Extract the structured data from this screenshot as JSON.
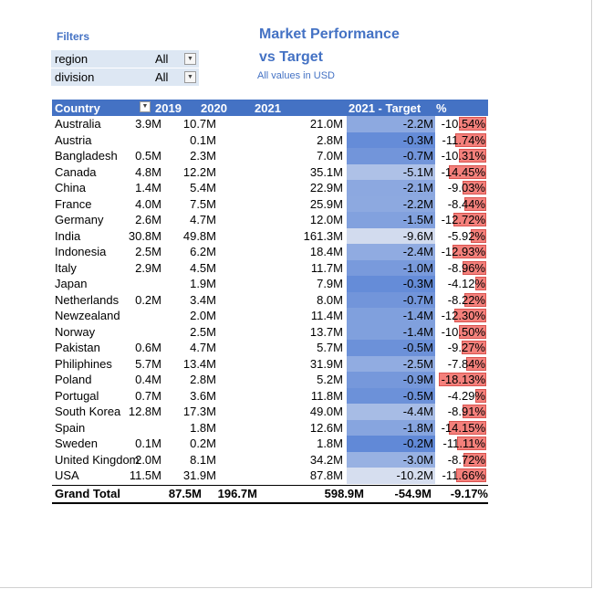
{
  "filters": {
    "title": "Filters",
    "items": [
      {
        "name": "region",
        "value": "All"
      },
      {
        "name": "division",
        "value": "All"
      }
    ]
  },
  "title_line1": "Market Performance",
  "title_line2": "vs Target",
  "subtitle": "All values in USD",
  "headers": {
    "country": "Country",
    "y2019": "2019",
    "y2020": "2020",
    "y2021": "2021",
    "target": "2021 - Target",
    "pct": "%"
  },
  "rows": [
    {
      "country": "Australia",
      "y2019": "3.9M",
      "y2020": "10.7M",
      "y2021": "21.0M",
      "target": "-2.2M",
      "pct": "-10.54%",
      "pct_value": 10.54,
      "target_value": 2.2
    },
    {
      "country": "Austria",
      "y2019": "",
      "y2020": "0.1M",
      "y2021": "2.8M",
      "target": "-0.3M",
      "pct": "-11.74%",
      "pct_value": 11.74,
      "target_value": 0.3
    },
    {
      "country": "Bangladesh",
      "y2019": "0.5M",
      "y2020": "2.3M",
      "y2021": "7.0M",
      "target": "-0.7M",
      "pct": "-10.31%",
      "pct_value": 10.31,
      "target_value": 0.7
    },
    {
      "country": "Canada",
      "y2019": "4.8M",
      "y2020": "12.2M",
      "y2021": "35.1M",
      "target": "-5.1M",
      "pct": "-14.45%",
      "pct_value": 14.45,
      "target_value": 5.1
    },
    {
      "country": "China",
      "y2019": "1.4M",
      "y2020": "5.4M",
      "y2021": "22.9M",
      "target": "-2.1M",
      "pct": "-9.03%",
      "pct_value": 9.03,
      "target_value": 2.1
    },
    {
      "country": "France",
      "y2019": "4.0M",
      "y2020": "7.5M",
      "y2021": "25.9M",
      "target": "-2.2M",
      "pct": "-8.44%",
      "pct_value": 8.44,
      "target_value": 2.2
    },
    {
      "country": "Germany",
      "y2019": "2.6M",
      "y2020": "4.7M",
      "y2021": "12.0M",
      "target": "-1.5M",
      "pct": "-12.72%",
      "pct_value": 12.72,
      "target_value": 1.5
    },
    {
      "country": "India",
      "y2019": "30.8M",
      "y2020": "49.8M",
      "y2021": "161.3M",
      "target": "-9.6M",
      "pct": "-5.92%",
      "pct_value": 5.92,
      "target_value": 9.6
    },
    {
      "country": "Indonesia",
      "y2019": "2.5M",
      "y2020": "6.2M",
      "y2021": "18.4M",
      "target": "-2.4M",
      "pct": "-12.93%",
      "pct_value": 12.93,
      "target_value": 2.4
    },
    {
      "country": "Italy",
      "y2019": "2.9M",
      "y2020": "4.5M",
      "y2021": "11.7M",
      "target": "-1.0M",
      "pct": "-8.96%",
      "pct_value": 8.96,
      "target_value": 1.0
    },
    {
      "country": "Japan",
      "y2019": "",
      "y2020": "1.9M",
      "y2021": "7.9M",
      "target": "-0.3M",
      "pct": "-4.12%",
      "pct_value": 4.12,
      "target_value": 0.3
    },
    {
      "country": "Netherlands",
      "y2019": "0.2M",
      "y2020": "3.4M",
      "y2021": "8.0M",
      "target": "-0.7M",
      "pct": "-8.22%",
      "pct_value": 8.22,
      "target_value": 0.7
    },
    {
      "country": "Newzealand",
      "y2019": "",
      "y2020": "2.0M",
      "y2021": "11.4M",
      "target": "-1.4M",
      "pct": "-12.30%",
      "pct_value": 12.3,
      "target_value": 1.4
    },
    {
      "country": "Norway",
      "y2019": "",
      "y2020": "2.5M",
      "y2021": "13.7M",
      "target": "-1.4M",
      "pct": "-10.50%",
      "pct_value": 10.5,
      "target_value": 1.4
    },
    {
      "country": "Pakistan",
      "y2019": "0.6M",
      "y2020": "4.7M",
      "y2021": "5.7M",
      "target": "-0.5M",
      "pct": "-9.27%",
      "pct_value": 9.27,
      "target_value": 0.5
    },
    {
      "country": "Philiphines",
      "y2019": "5.7M",
      "y2020": "13.4M",
      "y2021": "31.9M",
      "target": "-2.5M",
      "pct": "-7.84%",
      "pct_value": 7.84,
      "target_value": 2.5
    },
    {
      "country": "Poland",
      "y2019": "0.4M",
      "y2020": "2.8M",
      "y2021": "5.2M",
      "target": "-0.9M",
      "pct": "-18.13%",
      "pct_value": 18.13,
      "target_value": 0.9
    },
    {
      "country": "Portugal",
      "y2019": "0.7M",
      "y2020": "3.6M",
      "y2021": "11.8M",
      "target": "-0.5M",
      "pct": "-4.29%",
      "pct_value": 4.29,
      "target_value": 0.5
    },
    {
      "country": "South Korea",
      "y2019": "12.8M",
      "y2020": "17.3M",
      "y2021": "49.0M",
      "target": "-4.4M",
      "pct": "-8.91%",
      "pct_value": 8.91,
      "target_value": 4.4
    },
    {
      "country": "Spain",
      "y2019": "",
      "y2020": "1.8M",
      "y2021": "12.6M",
      "target": "-1.8M",
      "pct": "-14.15%",
      "pct_value": 14.15,
      "target_value": 1.8
    },
    {
      "country": "Sweden",
      "y2019": "0.1M",
      "y2020": "0.2M",
      "y2021": "1.8M",
      "target": "-0.2M",
      "pct": "-11.11%",
      "pct_value": 11.11,
      "target_value": 0.2
    },
    {
      "country": "United Kingdom",
      "y2019": "2.0M",
      "y2020": "8.1M",
      "y2021": "34.2M",
      "target": "-3.0M",
      "pct": "-8.72%",
      "pct_value": 8.72,
      "target_value": 3.0
    },
    {
      "country": "USA",
      "y2019": "11.5M",
      "y2020": "31.9M",
      "y2021": "87.8M",
      "target": "-10.2M",
      "pct": "-11.66%",
      "pct_value": 11.66,
      "target_value": 10.2
    }
  ],
  "total": {
    "label": "Grand Total",
    "y2019": "87.5M",
    "y2020": "196.7M",
    "y2021": "598.9M",
    "target": "-54.9M",
    "pct": "-9.17%"
  },
  "colors": {
    "header": "#4472c4",
    "title": "#4472c4",
    "filter_bg": "#dde7f3",
    "target_dark": "#4e7bd3",
    "target_light": "#d6deef",
    "pct_bar": "#f4807b"
  }
}
